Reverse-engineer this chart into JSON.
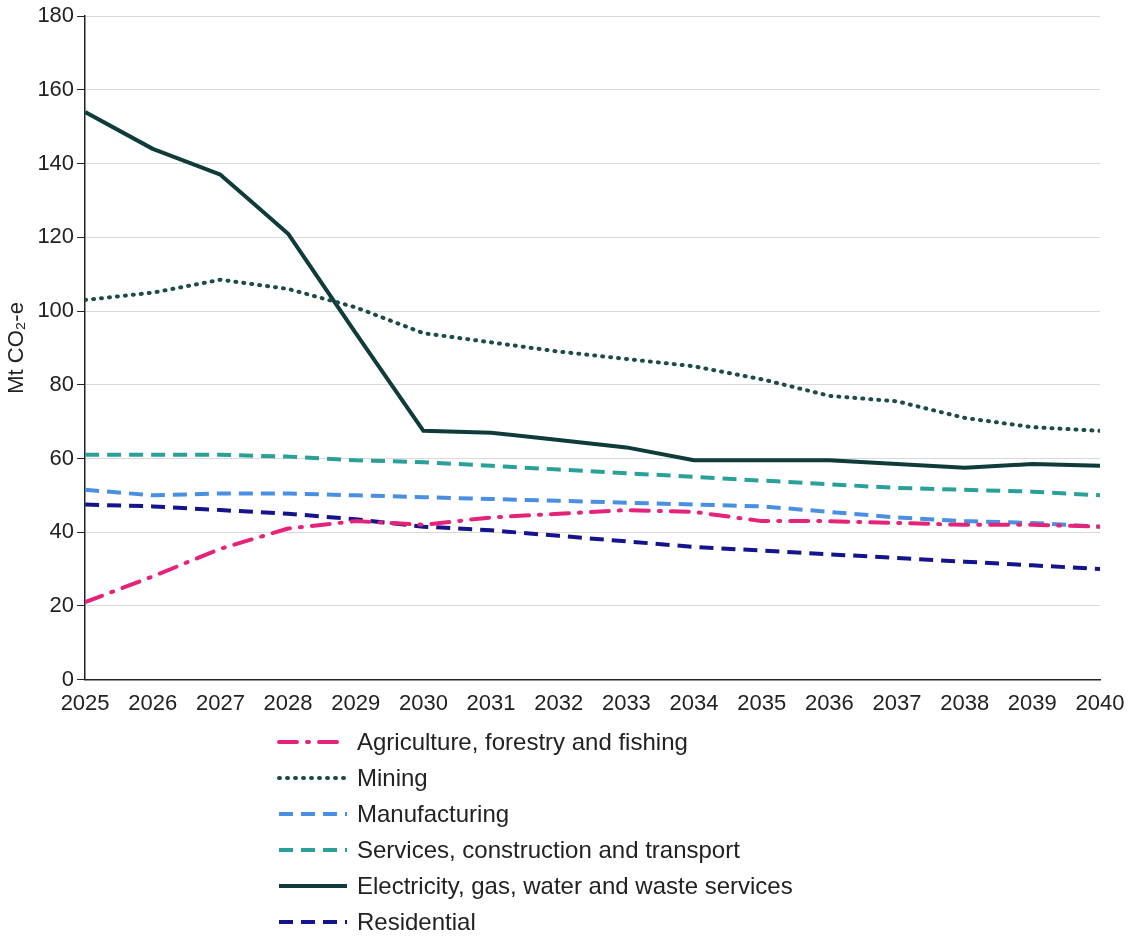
{
  "chart_data": {
    "type": "line",
    "ylabel": "Mt CO₂-e",
    "x": [
      2025,
      2026,
      2027,
      2028,
      2029,
      2030,
      2031,
      2032,
      2033,
      2034,
      2035,
      2036,
      2037,
      2038,
      2039,
      2040
    ],
    "xlim": [
      2025,
      2040
    ],
    "xticks": [
      2025,
      2026,
      2027,
      2028,
      2029,
      2030,
      2031,
      2032,
      2033,
      2034,
      2035,
      2036,
      2037,
      2038,
      2039,
      2040
    ],
    "ylim": [
      0,
      180
    ],
    "yticks": [
      0,
      20,
      40,
      60,
      80,
      100,
      120,
      140,
      160,
      180
    ],
    "grid": "y",
    "legend": "bottom",
    "marker": "none",
    "series": [
      {
        "name": "Agriculture, forestry and fishing",
        "color": "#e6237a",
        "line_style": "dashdot",
        "values": [
          21,
          28,
          35.5,
          41,
          43,
          42,
          44,
          45,
          46,
          45.5,
          43,
          43,
          42.5,
          42,
          42,
          41.5
        ]
      },
      {
        "name": "Mining",
        "color": "#1d4a4a",
        "line_style": "dotted",
        "values": [
          103,
          105,
          108.5,
          106,
          101,
          94,
          91.5,
          89,
          87,
          85,
          81.5,
          77,
          75.5,
          71,
          68.5,
          67.5
        ]
      },
      {
        "name": "Manufacturing",
        "color": "#4a90e2",
        "line_style": "dashed",
        "values": [
          51.5,
          50,
          50.5,
          50.5,
          50,
          49.5,
          49,
          48.5,
          48,
          47.5,
          47,
          45.5,
          44,
          43,
          42.5,
          41.5
        ]
      },
      {
        "name": "Services, construction and transport",
        "color": "#2aa198",
        "line_style": "dashed",
        "values": [
          61,
          61,
          61,
          60.5,
          59.5,
          59,
          58,
          57,
          56,
          55,
          54,
          53,
          52,
          51.5,
          51,
          50
        ]
      },
      {
        "name": "Electricity, gas, water and waste services",
        "color": "#0f3b3b",
        "line_style": "solid",
        "values": [
          154,
          144,
          137,
          121,
          94,
          67.5,
          67,
          65,
          63,
          59.5,
          59.5,
          59.5,
          58.5,
          57.5,
          58.5,
          58
        ]
      },
      {
        "name": "Residential",
        "color": "#14148c",
        "line_style": "dashed",
        "values": [
          47.5,
          47,
          46,
          45,
          43.5,
          41.5,
          40.5,
          39,
          37.5,
          36,
          35,
          34,
          33,
          32,
          31,
          30
        ]
      }
    ]
  }
}
